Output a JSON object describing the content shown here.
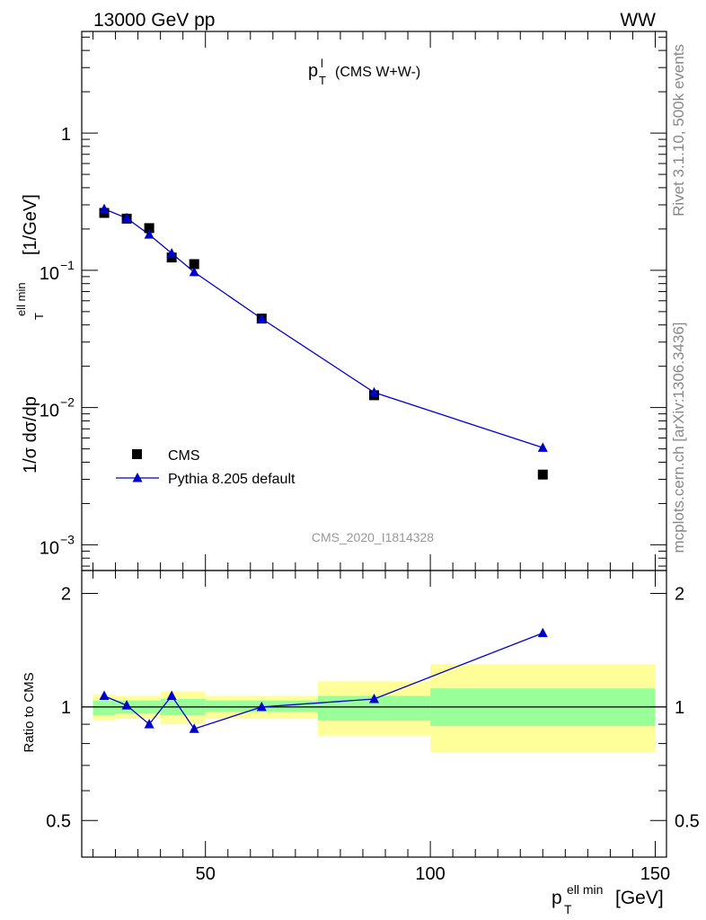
{
  "header": {
    "left": "13000 GeV pp",
    "right": "WW"
  },
  "side_labels": {
    "top": "Rivet 3.1.10,  500k events",
    "bottom": "mcplots.cern.ch [arXiv:1306.3436]"
  },
  "chart_data": [
    {
      "type": "scatter",
      "panel": "main",
      "title": "p_T^l (CMS W+W-)",
      "title_main": "p",
      "title_sup": "l",
      "title_sub": "T",
      "title_rest": "(CMS W+W-)",
      "ylabel": "1/σ dσ/dp_T^{ell min} [1/GeV]",
      "ylabel_parts": {
        "main": "1/σ dσ/dp",
        "sup": "ell min",
        "sub": "T",
        "unit": "[1/GeV]"
      },
      "yscale": "log",
      "ylim": [
        0.00065,
        5.5
      ],
      "xlim": [
        22.5,
        152.5
      ],
      "yticks": [
        {
          "value": 1,
          "label": "1"
        },
        {
          "value": 0.1,
          "label": "10",
          "exp": "−1"
        },
        {
          "value": 0.01,
          "label": "10",
          "exp": "−2"
        },
        {
          "value": 0.001,
          "label": "10",
          "exp": "−3"
        }
      ],
      "watermark": "CMS_2020_I1814328",
      "legend_position": "lower-left",
      "series": [
        {
          "name": "CMS",
          "marker": "square",
          "color": "#000000",
          "x": [
            27.5,
            32.5,
            37.5,
            42.5,
            47.5,
            62.5,
            87.5,
            125
          ],
          "y": [
            0.262,
            0.238,
            0.203,
            0.124,
            0.111,
            0.0445,
            0.0123,
            0.00325
          ],
          "x_err": [
            2.5,
            2.5,
            2.5,
            2.5,
            2.5,
            12.5,
            12.5,
            25
          ]
        },
        {
          "name": "Pythia 8.205 default",
          "marker": "triangle",
          "color": "#0000cc",
          "x": [
            27.5,
            32.5,
            37.5,
            42.5,
            47.5,
            62.5,
            87.5,
            125
          ],
          "y": [
            0.28,
            0.24,
            0.182,
            0.133,
            0.097,
            0.0445,
            0.0129,
            0.0051
          ]
        }
      ]
    },
    {
      "type": "line",
      "panel": "ratio",
      "ylabel": "Ratio to CMS",
      "xlabel": "p_T^{ell min} [GeV]",
      "xlabel_parts": {
        "main": "p",
        "sup": "ell min",
        "sub": "T",
        "unit": "[GeV]"
      },
      "xlim": [
        22.5,
        152.5
      ],
      "ylim": [
        0.4,
        2.3
      ],
      "xticks": [
        50,
        100,
        150
      ],
      "yticks": [
        0.5,
        1,
        2
      ],
      "reference_line": 1,
      "bands": [
        {
          "x0": 25,
          "x1": 30,
          "inner": [
            0.95,
            1.04
          ],
          "outer": [
            0.92,
            1.08
          ]
        },
        {
          "x0": 30,
          "x1": 35,
          "inner": [
            0.96,
            1.04
          ],
          "outer": [
            0.93,
            1.07
          ]
        },
        {
          "x0": 35,
          "x1": 40,
          "inner": [
            0.96,
            1.04
          ],
          "outer": [
            0.93,
            1.07
          ]
        },
        {
          "x0": 40,
          "x1": 45,
          "inner": [
            0.95,
            1.05
          ],
          "outer": [
            0.9,
            1.1
          ]
        },
        {
          "x0": 45,
          "x1": 50,
          "inner": [
            0.95,
            1.05
          ],
          "outer": [
            0.9,
            1.1
          ]
        },
        {
          "x0": 50,
          "x1": 75,
          "inner": [
            0.97,
            1.04
          ],
          "outer": [
            0.93,
            1.07
          ]
        },
        {
          "x0": 75,
          "x1": 100,
          "inner": [
            0.92,
            1.07
          ],
          "outer": [
            0.84,
            1.17
          ]
        },
        {
          "x0": 100,
          "x1": 150,
          "inner": [
            0.89,
            1.12
          ],
          "outer": [
            0.76,
            1.3
          ]
        }
      ],
      "series": [
        {
          "name": "Pythia 8.205 default / CMS",
          "marker": "triangle",
          "color": "#0000cc",
          "x": [
            27.5,
            32.5,
            37.5,
            42.5,
            47.5,
            62.5,
            87.5,
            125
          ],
          "y": [
            1.07,
            1.01,
            0.9,
            1.07,
            0.875,
            1.0,
            1.05,
            1.57
          ]
        }
      ]
    }
  ]
}
